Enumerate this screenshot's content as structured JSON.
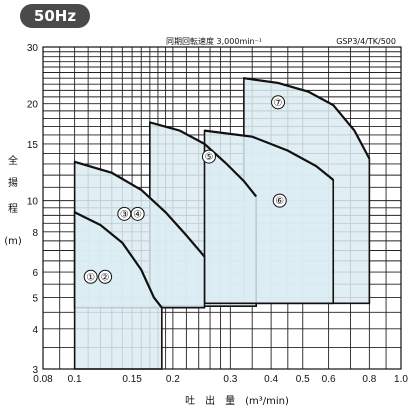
{
  "badge": "50Hz",
  "header": {
    "speed": "同期回転速度 3,000min⁻¹",
    "model": "GSP3/4/TK/500"
  },
  "chart_data": {
    "type": "line",
    "xscale": "log",
    "yscale": "log",
    "xlim": [
      0.08,
      1.0
    ],
    "ylim": [
      3,
      30
    ],
    "x_ticks": [
      "0.08",
      "0.1",
      "0.15",
      "0.2",
      "0.3",
      "0.4",
      "0.5",
      "0.6",
      "0.8",
      "1.0"
    ],
    "x_tick_values": [
      0.08,
      0.1,
      0.15,
      0.2,
      0.3,
      0.4,
      0.5,
      0.6,
      0.8,
      1.0
    ],
    "y_ticks": [
      "3",
      "4",
      "5",
      "6",
      "8",
      "10",
      "15",
      "20",
      "30"
    ],
    "y_tick_values": [
      3,
      4,
      5,
      6,
      8,
      10,
      15,
      20,
      30
    ],
    "ylabel_chars": [
      "全",
      "揚",
      "程",
      "(m)"
    ],
    "xlabel": "吐　出　量　(m³/min)",
    "grid": true,
    "series": [
      {
        "name": "①②",
        "values": [
          [
            0.1,
            9.2
          ],
          [
            0.12,
            8.4
          ],
          [
            0.14,
            7.4
          ],
          [
            0.16,
            6.1
          ],
          [
            0.175,
            5.0
          ],
          [
            0.185,
            4.65
          ]
        ]
      },
      {
        "name": "③④",
        "values": [
          [
            0.1,
            13.2
          ],
          [
            0.13,
            12.2
          ],
          [
            0.16,
            10.8
          ],
          [
            0.19,
            9.2
          ],
          [
            0.22,
            7.8
          ],
          [
            0.25,
            6.7
          ]
        ]
      },
      {
        "name": "⑤",
        "values": [
          [
            0.17,
            17.5
          ],
          [
            0.21,
            16.5
          ],
          [
            0.25,
            15.0
          ],
          [
            0.29,
            13.1
          ],
          [
            0.33,
            11.5
          ],
          [
            0.36,
            10.3
          ]
        ]
      },
      {
        "name": "⑥",
        "values": [
          [
            0.25,
            16.5
          ],
          [
            0.35,
            15.8
          ],
          [
            0.45,
            14.3
          ],
          [
            0.55,
            12.8
          ],
          [
            0.62,
            11.6
          ]
        ]
      },
      {
        "name": "⑦",
        "values": [
          [
            0.33,
            24.0
          ],
          [
            0.42,
            23.2
          ],
          [
            0.52,
            21.8
          ],
          [
            0.62,
            19.8
          ],
          [
            0.72,
            16.5
          ],
          [
            0.8,
            13.5
          ]
        ]
      }
    ],
    "markers": [
      {
        "label": "①",
        "x": 0.112,
        "y": 5.8
      },
      {
        "label": "②",
        "x": 0.124,
        "y": 5.8
      },
      {
        "label": "③",
        "x": 0.142,
        "y": 9.1
      },
      {
        "label": "④",
        "x": 0.156,
        "y": 9.1
      },
      {
        "label": "⑤",
        "x": 0.258,
        "y": 13.7
      },
      {
        "label": "⑥",
        "x": 0.425,
        "y": 10.0
      },
      {
        "label": "⑦",
        "x": 0.42,
        "y": 20.2
      }
    ]
  }
}
